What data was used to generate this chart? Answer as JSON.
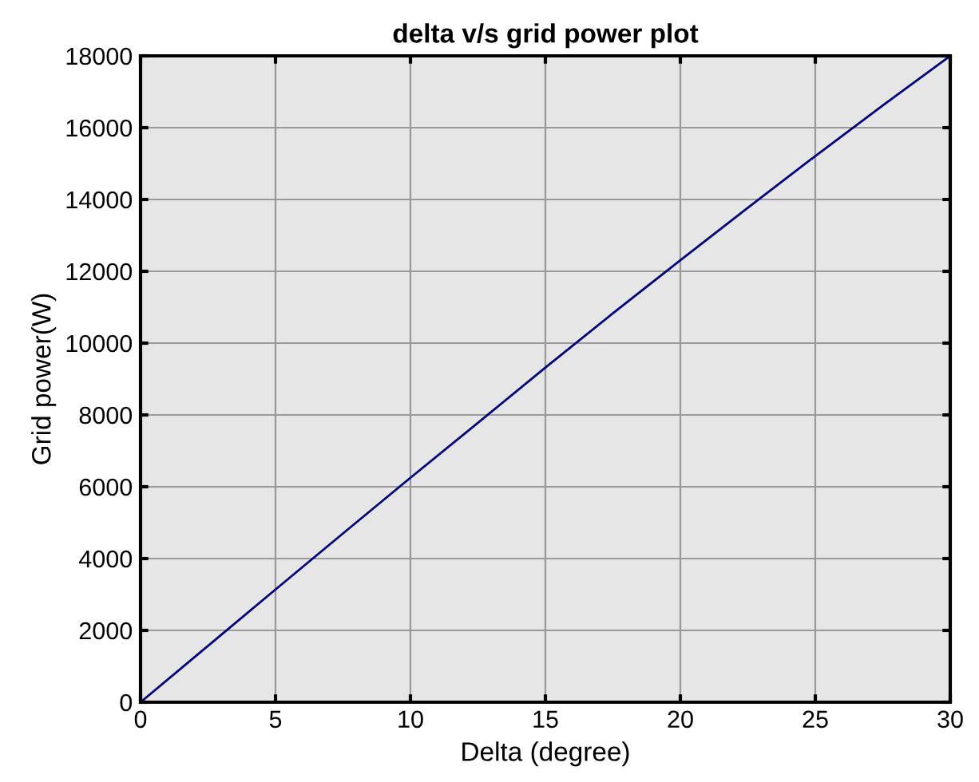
{
  "chart_data": {
    "type": "line",
    "title": "delta v/s grid power plot",
    "xlabel": "Delta (degree)",
    "ylabel": "Grid power(W)",
    "x": [
      0,
      2.5,
      5,
      7.5,
      10,
      12.5,
      15,
      17.5,
      20,
      22.5,
      25,
      27.5,
      30
    ],
    "series": [
      {
        "color": "#000080",
        "values": [
          0,
          1570,
          3140,
          4700,
          6250,
          7780,
          9320,
          10830,
          12310,
          13770,
          15210,
          16620,
          18000
        ]
      }
    ],
    "xlim": [
      0,
      30
    ],
    "xticks": [
      0,
      5,
      10,
      15,
      20,
      25,
      30
    ],
    "ylim": [
      0,
      18000
    ],
    "yticks": [
      0,
      2000,
      4000,
      6000,
      8000,
      10000,
      12000,
      14000,
      16000,
      18000
    ],
    "grid": true,
    "legend": false,
    "marker": "none",
    "line_style": "solid"
  }
}
